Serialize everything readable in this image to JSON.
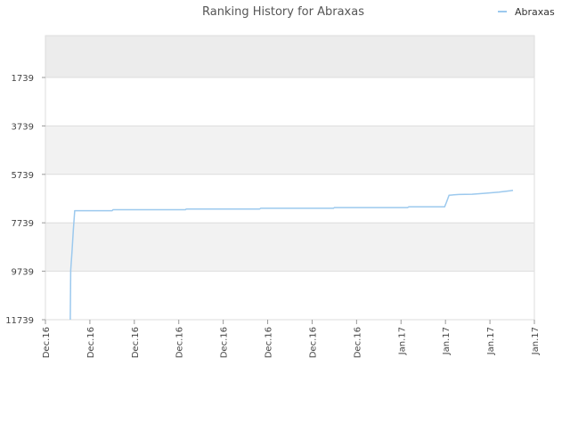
{
  "chart_data": {
    "type": "line",
    "title": "Ranking History for Abraxas",
    "xlabel": "",
    "ylabel": "",
    "legend": {
      "position": "top-right",
      "entries": [
        "Abraxas"
      ]
    },
    "y_axis": {
      "inverted": true,
      "ylim": [
        1739,
        11739
      ],
      "ticks": [
        1739,
        3739,
        5739,
        7739,
        9739,
        11739
      ],
      "tick_labels": [
        "1739",
        "3739",
        "5739",
        "7739",
        "9739",
        "11739"
      ]
    },
    "x_axis": {
      "xlim": [
        0,
        11
      ],
      "ticks": [
        0,
        1,
        2,
        3,
        4,
        5,
        6,
        7,
        8,
        9,
        10,
        11
      ],
      "tick_labels": [
        "Dec.16",
        "Dec.16",
        "Dec.16",
        "Dec.16",
        "Dec.16",
        "Dec.16",
        "Dec.16",
        "Dec.16",
        "Jan.17",
        "Jan.17",
        "Jan.17",
        "Jan.17"
      ]
    },
    "grid": true,
    "colors": {
      "series": "#9cc9ee",
      "band": "#f2f2f2",
      "band_dark": "#ececec",
      "grid": "#dddddd"
    },
    "series": [
      {
        "name": "Abraxas",
        "points": [
          [
            0.56,
            11739
          ],
          [
            0.57,
            9700
          ],
          [
            0.6,
            8900
          ],
          [
            0.63,
            8000
          ],
          [
            0.66,
            7240
          ],
          [
            1.5,
            7240
          ],
          [
            1.52,
            7200
          ],
          [
            3.15,
            7200
          ],
          [
            3.17,
            7170
          ],
          [
            4.82,
            7170
          ],
          [
            4.84,
            7140
          ],
          [
            6.48,
            7140
          ],
          [
            6.5,
            7110
          ],
          [
            8.15,
            7110
          ],
          [
            8.17,
            7080
          ],
          [
            8.98,
            7080
          ],
          [
            9.02,
            6900
          ],
          [
            9.08,
            6600
          ],
          [
            9.3,
            6570
          ],
          [
            9.6,
            6560
          ],
          [
            9.9,
            6520
          ],
          [
            10.2,
            6470
          ],
          [
            10.45,
            6420
          ],
          [
            10.52,
            6400
          ]
        ]
      }
    ]
  }
}
